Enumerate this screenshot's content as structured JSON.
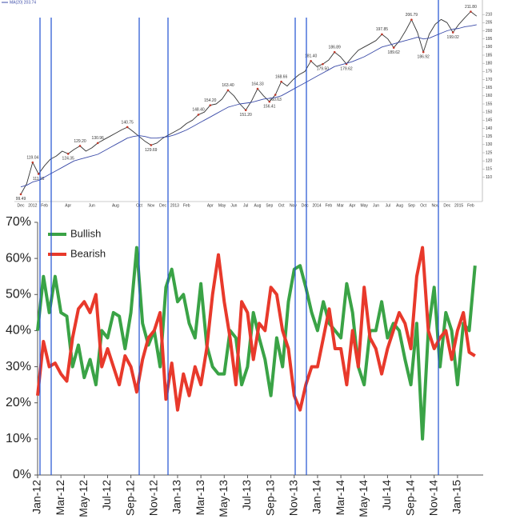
{
  "chart_data": [
    {
      "type": "line",
      "categories": [
        "Dec",
        null,
        "2012",
        null,
        "Feb",
        null,
        null,
        null,
        "Apr",
        null,
        null,
        null,
        "Jun",
        null,
        null,
        null,
        "Aug",
        null,
        null,
        null,
        "Oct",
        null,
        "Nov",
        null,
        "Dec",
        null,
        "2013",
        null,
        "Feb",
        null,
        null,
        null,
        "Apr",
        null,
        "May",
        null,
        "Jun",
        null,
        "Jul",
        null,
        "Aug",
        null,
        "Sep",
        null,
        "Oct",
        null,
        "Nov",
        null,
        "Dec",
        null,
        "2014",
        null,
        "Feb",
        null,
        "Mar",
        null,
        "Apr",
        null,
        "May",
        null,
        "Jun",
        null,
        "Jul",
        null,
        "Aug",
        null,
        "Sep",
        null,
        "Oct",
        null,
        "Nov",
        null,
        "Dec",
        null,
        "2015",
        null,
        "Feb",
        null
      ],
      "series": [
        {
          "color": "#333333",
          "values": [
            99.49,
            106,
            119.04,
            111.98,
            117,
            121,
            123,
            126,
            124.35,
            127,
            129.2,
            126,
            128,
            130.96,
            133,
            135,
            137,
            139,
            140.75,
            138,
            135,
            132,
            129.69,
            131,
            134,
            136,
            138,
            140,
            143,
            145,
            148.4,
            150,
            154.2,
            155,
            158,
            163.4,
            160,
            155,
            151.2,
            157,
            164.33,
            160,
            156.41,
            160.63,
            168.66,
            166,
            170,
            173,
            175,
            181.4,
            178,
            179.5,
            182,
            186.89,
            184,
            179.62,
            184,
            188,
            190,
            192,
            194,
            197.85,
            195,
            189.62,
            194,
            200,
            206.79,
            199,
            186.92,
            198,
            204,
            207,
            205,
            199.02,
            204,
            208,
            211.8,
            209
          ],
          "value_labels": [
            "99.49",
            null,
            "119.04",
            "111.98",
            null,
            null,
            null,
            null,
            "124.35",
            null,
            "129.20",
            null,
            null,
            "130.96",
            null,
            null,
            null,
            null,
            "140.75",
            null,
            null,
            null,
            "129.69",
            null,
            null,
            null,
            null,
            null,
            null,
            null,
            "148.40",
            null,
            "154.20",
            null,
            null,
            "163.40",
            null,
            null,
            "151.20",
            null,
            "164.33",
            null,
            "156.41",
            "160.63",
            "168.66",
            null,
            null,
            null,
            null,
            "181.40",
            null,
            "179.50",
            null,
            "186.89",
            null,
            "179.62",
            null,
            null,
            null,
            null,
            null,
            "197.85",
            null,
            "189.62",
            null,
            null,
            "206.79",
            null,
            "186.92",
            null,
            null,
            null,
            null,
            "199.02",
            null,
            null,
            "211.80",
            null
          ]
        },
        {
          "name": "MA(20) 203.74",
          "color": "#3b4ba8",
          "values": [
            104,
            105,
            107,
            108,
            110,
            112,
            114,
            116,
            118,
            120,
            121,
            122,
            123,
            124,
            126,
            128,
            130,
            132,
            134,
            135,
            135.5,
            135,
            134,
            134,
            134.5,
            135,
            136,
            137.5,
            139,
            141,
            143,
            145,
            147,
            149,
            151,
            153,
            154,
            155,
            155.5,
            156,
            157,
            158,
            158.5,
            159,
            160,
            162,
            164,
            166,
            168,
            170,
            172,
            174,
            176,
            178,
            179,
            180,
            181,
            182.5,
            184,
            186,
            188,
            190,
            191,
            192,
            193,
            194,
            195,
            196,
            195,
            195.5,
            197,
            198.5,
            200,
            201,
            201.5,
            202.5,
            203,
            203.74
          ]
        }
      ],
      "ylim": [
        95,
        215
      ],
      "yticks": [
        110,
        115,
        120,
        125,
        130,
        135,
        140,
        145,
        150,
        155,
        160,
        165,
        170,
        175,
        180,
        185,
        190,
        195,
        200,
        205,
        210
      ]
    },
    {
      "type": "line",
      "categories": [
        "Jan-12",
        null,
        null,
        null,
        "Mar-12",
        null,
        null,
        null,
        "May-12",
        null,
        null,
        null,
        "Jul-12",
        null,
        null,
        null,
        "Sep-12",
        null,
        null,
        null,
        "Nov-12",
        null,
        null,
        null,
        "Jan-13",
        null,
        null,
        null,
        "Mar-13",
        null,
        null,
        null,
        "May-13",
        null,
        null,
        null,
        "Jul-13",
        null,
        null,
        null,
        "Sep-13",
        null,
        null,
        null,
        "Nov-13",
        null,
        null,
        null,
        "Jan-14",
        null,
        null,
        null,
        "Mar-14",
        null,
        null,
        null,
        "May-14",
        null,
        null,
        null,
        "Jul-14",
        null,
        null,
        null,
        "Sep-14",
        null,
        null,
        null,
        "Nov-14",
        null,
        null,
        null,
        "Jan-15",
        null,
        null,
        null
      ],
      "series": [
        {
          "name": "Bullish",
          "color": "#3aa346",
          "values": [
            40,
            55,
            45,
            55,
            45,
            44,
            30,
            36,
            27,
            32,
            25,
            40,
            38,
            45,
            44,
            35,
            45,
            63,
            42,
            36,
            40,
            30,
            52,
            57,
            48,
            50,
            42,
            38,
            53,
            36,
            30,
            28,
            28,
            40,
            38,
            25,
            30,
            45,
            38,
            32,
            22,
            38,
            30,
            48,
            57,
            58,
            52,
            45,
            40,
            48,
            42,
            40,
            38,
            53,
            45,
            30,
            25,
            40,
            40,
            48,
            38,
            42,
            40,
            32,
            25,
            42,
            10,
            40,
            52,
            30,
            45,
            40,
            25,
            42,
            40,
            58
          ]
        },
        {
          "name": "Bearish",
          "color": "#e8392b",
          "values": [
            22,
            37,
            30,
            31,
            28,
            26,
            38,
            46,
            48,
            45,
            50,
            30,
            35,
            30,
            25,
            33,
            30,
            23,
            32,
            38,
            40,
            45,
            21,
            31,
            18,
            28,
            22,
            30,
            25,
            35,
            50,
            61,
            48,
            38,
            25,
            48,
            45,
            32,
            42,
            40,
            52,
            50,
            40,
            35,
            22,
            18,
            25,
            30,
            30,
            38,
            46,
            35,
            35,
            25,
            40,
            30,
            52,
            38,
            35,
            28,
            35,
            40,
            45,
            42,
            35,
            55,
            63,
            40,
            35,
            38,
            40,
            32,
            40,
            45,
            34,
            33
          ]
        }
      ],
      "ylim": [
        0,
        70
      ],
      "yticks": [
        {
          "value": 0,
          "label": "0%"
        },
        {
          "value": 10,
          "label": "10%"
        },
        {
          "value": 20,
          "label": "20%"
        },
        {
          "value": 30,
          "label": "30%"
        },
        {
          "value": 40,
          "label": "40%"
        },
        {
          "value": 50,
          "label": "50%"
        },
        {
          "value": 60,
          "label": "60%"
        },
        {
          "value": 70,
          "label": "70%"
        }
      ]
    }
  ]
}
